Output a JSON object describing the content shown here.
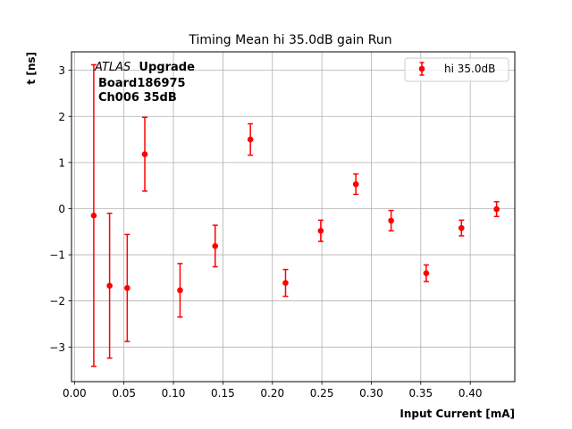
{
  "chart_data": {
    "type": "scatter",
    "title": "Timing Mean hi 35.0dB gain Run",
    "xlabel": "Input Current [mA]",
    "ylabel": "t [ns]",
    "xlim": [
      -0.003,
      0.445
    ],
    "ylim": [
      -3.75,
      3.4
    ],
    "xticks": [
      0.0,
      0.05,
      0.1,
      0.15,
      0.2,
      0.25,
      0.3,
      0.35,
      0.4
    ],
    "xtick_labels": [
      "0.00",
      "0.05",
      "0.10",
      "0.15",
      "0.20",
      "0.25",
      "0.30",
      "0.35",
      "0.40"
    ],
    "yticks": [
      -3,
      -2,
      -1,
      0,
      1,
      2,
      3
    ],
    "ytick_labels": [
      "−3",
      "−2",
      "−1",
      "0",
      "1",
      "2",
      "3"
    ],
    "grid": true,
    "legend_position": "top-right",
    "annotation": {
      "atlas": "ATLAS",
      "upgrade": "Upgrade",
      "board": "Board186975",
      "channel": "Ch006 35dB"
    },
    "series": [
      {
        "name": "hi 35.0dB",
        "color": "#ff0000",
        "x": [
          0.0195,
          0.0355,
          0.0533,
          0.0711,
          0.1067,
          0.1422,
          0.1778,
          0.2133,
          0.2489,
          0.2844,
          0.32,
          0.3555,
          0.3911,
          0.4266
        ],
        "y": [
          -0.15,
          -1.67,
          -1.72,
          1.18,
          -1.77,
          -0.81,
          1.5,
          -1.61,
          -0.48,
          0.53,
          -0.26,
          -1.4,
          -0.42,
          -0.01
        ],
        "yerr": [
          3.27,
          1.57,
          1.16,
          0.8,
          0.58,
          0.45,
          0.34,
          0.29,
          0.23,
          0.22,
          0.22,
          0.18,
          0.17,
          0.16
        ]
      }
    ]
  }
}
